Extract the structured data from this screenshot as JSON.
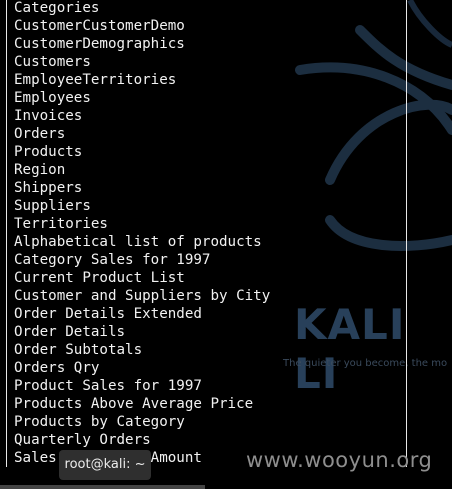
{
  "table_rows": [
    "Categories",
    "CustomerCustomerDemo",
    "CustomerDemographics",
    "Customers",
    "EmployeeTerritories",
    "Employees",
    "Invoices",
    "Orders",
    "Products",
    "Region",
    "Shippers",
    "Suppliers",
    "Territories",
    "Alphabetical list of products",
    "Category Sales for 1997",
    "Current Product List",
    "Customer and Suppliers by City",
    "Order Details Extended",
    "Order Details",
    "Order Subtotals",
    "Orders Qry",
    "Product Sales for 1997",
    "Products Above Average Price",
    "Products by Category",
    "Quarterly Orders",
    "Sales Totals by Amount"
  ],
  "wallpaper": {
    "logo_text": "KALI LI",
    "tagline": "The quieter you become, the mo",
    "bg_color": "#000000",
    "accent_color": "#28405a"
  },
  "tooltip": {
    "label": "root@kali: ~"
  },
  "watermark": {
    "text": "www.wooyun.org"
  }
}
